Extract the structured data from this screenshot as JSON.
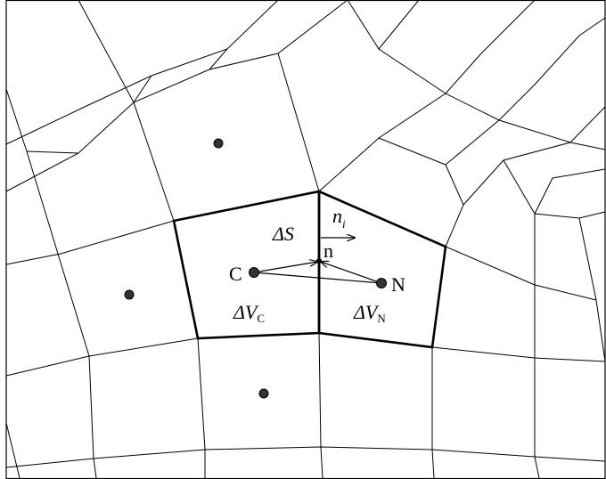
{
  "diagram": {
    "labels": {
      "C": "C",
      "N": "N",
      "n": "n",
      "delta_s": "ΔS",
      "normal": "n",
      "normal_sub": "i",
      "vol_c_delta": "ΔV",
      "vol_c_sub": "C",
      "vol_n_delta": "ΔV",
      "vol_n_sub": "N"
    },
    "nodes": [
      "C",
      "N",
      "n"
    ],
    "neighbor_centroids": 3
  }
}
